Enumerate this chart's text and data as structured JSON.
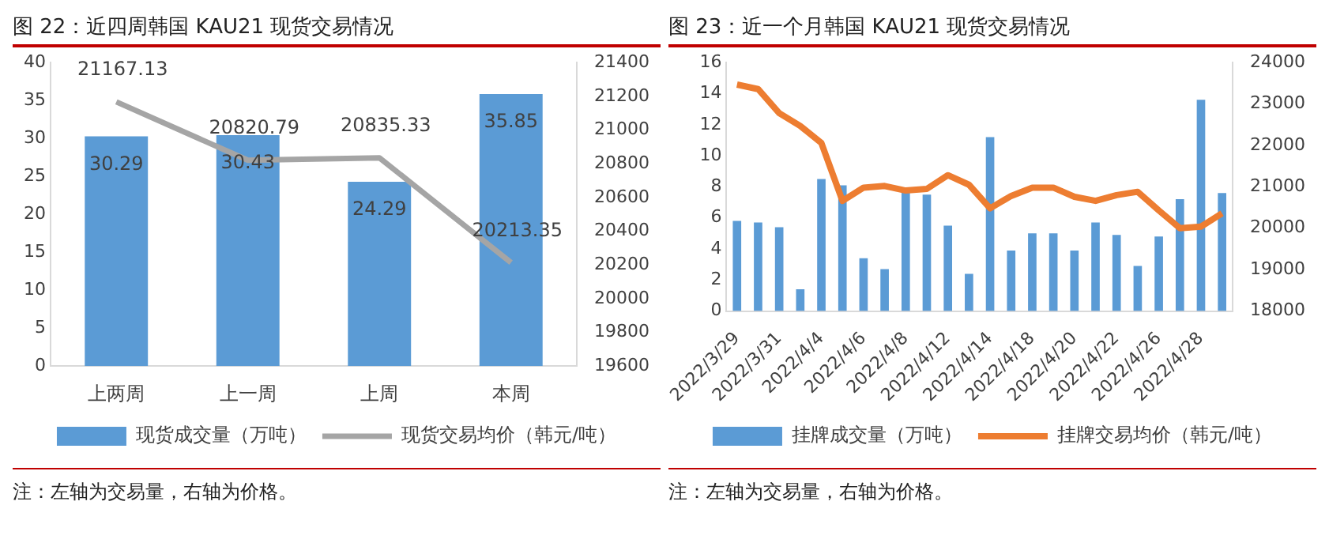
{
  "chart_data": [
    {
      "type": "bar",
      "title": "图 22：近四周韩国 KAU21 现货交易情况",
      "categories": [
        "上两周",
        "上一周",
        "上周",
        "本周"
      ],
      "series": [
        {
          "name": "现货成交量（万吨）",
          "color": "#5b9bd5",
          "values": [
            30.29,
            30.43,
            24.29,
            35.85
          ]
        },
        {
          "name": "现货交易均价（韩元/吨）",
          "type": "line",
          "axis": "y2",
          "color": "#a5a5a5",
          "values": [
            21167.13,
            20820.79,
            20835.33,
            20213.35
          ]
        }
      ],
      "ylim": [
        0,
        40
      ],
      "yticks": [
        0,
        5,
        10,
        15,
        20,
        25,
        30,
        35,
        40
      ],
      "y2lim": [
        19600,
        21400
      ],
      "y2ticks": [
        19600,
        19800,
        20000,
        20200,
        20400,
        20600,
        20800,
        21000,
        21200,
        21400
      ],
      "data_labels": true,
      "legend": "bottom",
      "annotations": [
        "注：左轴为交易量，右轴为价格。"
      ]
    },
    {
      "type": "bar",
      "title": "图 23：近一个月韩国 KAU21 现货交易情况",
      "categories": [
        "2022/3/29",
        null,
        "2022/3/31",
        null,
        "2022/4/4",
        null,
        "2022/4/6",
        null,
        "2022/4/8",
        null,
        "2022/4/12",
        null,
        "2022/4/14",
        null,
        "2022/4/18",
        null,
        "2022/4/20",
        null,
        "2022/4/22",
        null,
        "2022/4/26",
        null,
        "2022/4/28",
        null
      ],
      "series": [
        {
          "name": "挂牌成交量（万吨）",
          "color": "#5b9bd5",
          "values": [
            5.8,
            5.7,
            5.4,
            1.4,
            8.5,
            8.1,
            3.4,
            2.7,
            7.8,
            7.5,
            5.5,
            2.4,
            11.2,
            3.9,
            5.0,
            5.0,
            3.9,
            5.7,
            4.9,
            2.9,
            4.8,
            7.2,
            13.6,
            7.6
          ]
        },
        {
          "name": "挂牌交易均价（韩元/吨）",
          "type": "line",
          "axis": "y2",
          "color": "#ed7d31",
          "values": [
            23470,
            23360,
            22780,
            22470,
            22060,
            20660,
            20980,
            21020,
            20910,
            20950,
            21280,
            21050,
            20480,
            20780,
            20980,
            20980,
            20760,
            20660,
            20800,
            20880,
            20430,
            20000,
            20040,
            20360
          ]
        }
      ],
      "ylim": [
        0,
        16
      ],
      "yticks": [
        0,
        2,
        4,
        6,
        8,
        10,
        12,
        14,
        16
      ],
      "y2lim": [
        18000,
        24000
      ],
      "y2ticks": [
        18000,
        19000,
        20000,
        21000,
        22000,
        23000,
        24000
      ],
      "legend": "bottom",
      "annotations": [
        "注：左轴为交易量，右轴为价格。"
      ]
    }
  ]
}
